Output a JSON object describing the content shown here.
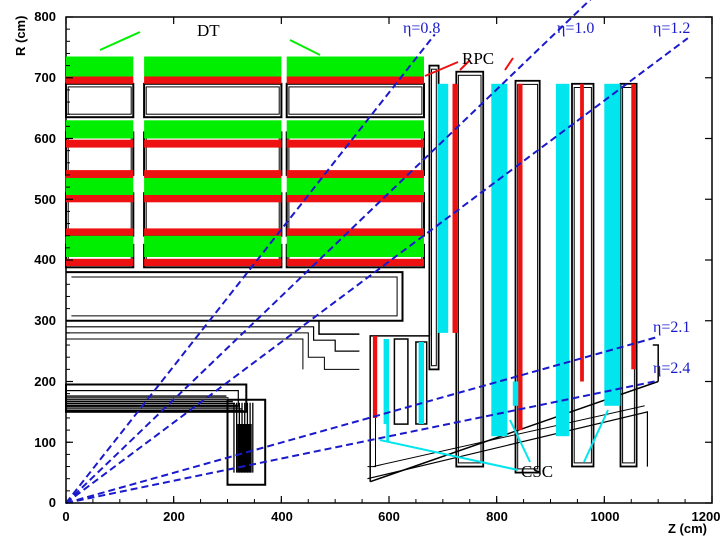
{
  "figure": {
    "x_axis": {
      "label": "Z (cm)",
      "range": [
        0,
        1200
      ],
      "ticks": [
        0,
        200,
        400,
        600,
        800,
        1000,
        1200
      ],
      "tick_labels": [
        "0",
        "200",
        "400",
        "600",
        "800",
        "1000",
        "1200"
      ]
    },
    "y_axis": {
      "label": "R (cm)",
      "range": [
        0,
        800
      ],
      "ticks": [
        0,
        100,
        200,
        300,
        400,
        500,
        600,
        700,
        800
      ],
      "tick_labels": [
        "0",
        "100",
        "200",
        "300",
        "400",
        "500",
        "600",
        "700",
        "800"
      ]
    },
    "labels": {
      "dt": "DT",
      "rpc": "RPC",
      "csc": "CSC"
    },
    "eta_lines": [
      {
        "label": "η=0.8",
        "eta": 0.8
      },
      {
        "label": "η=1.0",
        "eta": 1.0
      },
      {
        "label": "η=1.2",
        "eta": 1.2
      },
      {
        "label": "η=2.1",
        "eta": 2.1
      },
      {
        "label": "η=2.4",
        "eta": 2.4
      }
    ],
    "colors": {
      "dt": "#00ee00",
      "rpc": "#ee1111",
      "csc": "#00e5ee",
      "eta": "#1a1acc",
      "frame": "#000000"
    }
  }
}
